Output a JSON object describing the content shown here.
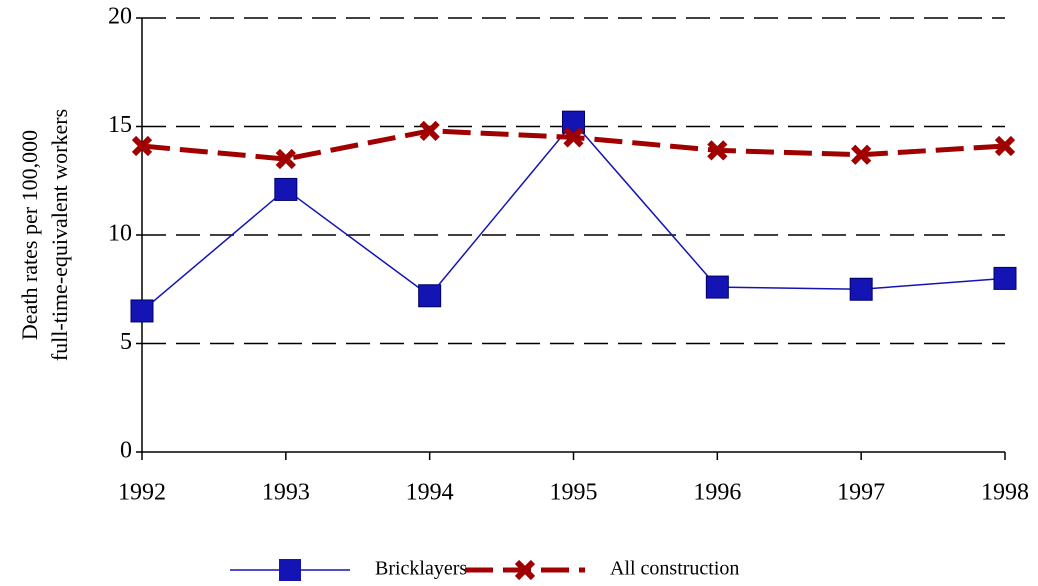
{
  "chart_data": {
    "type": "line",
    "y_label": [
      "Death rates per 100,000",
      "full-time-equivalent workers"
    ],
    "x": [
      1992,
      1993,
      1994,
      1995,
      1996,
      1997,
      1998
    ],
    "xlim": [
      1992,
      1998
    ],
    "xticks": [
      1992,
      1993,
      1994,
      1995,
      1996,
      1997,
      1998
    ],
    "ylim": [
      0,
      20
    ],
    "yticks": [
      0,
      5,
      10,
      15,
      20
    ],
    "grid": true,
    "legend": "bottom",
    "series": [
      {
        "name": "Bricklayers",
        "color": "#1414b4",
        "values": [
          6.5,
          12.1,
          7.2,
          15.2,
          7.6,
          7.5,
          8.0
        ]
      },
      {
        "name": "All construction",
        "color": "#a00000",
        "values": [
          14.1,
          13.5,
          14.8,
          14.5,
          13.9,
          13.7,
          14.1
        ]
      }
    ]
  }
}
